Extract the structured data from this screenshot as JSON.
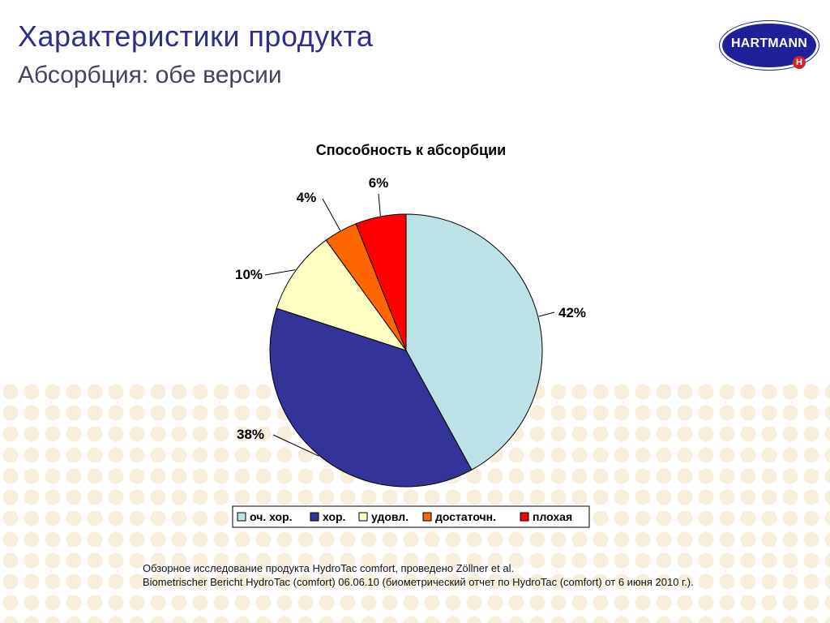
{
  "slide": {
    "title": "Характеристики продукта",
    "subtitle": "Абсорбция: обе версии",
    "logo": {
      "text": "HARTMANN",
      "mark": "H"
    }
  },
  "chart_data": {
    "type": "pie",
    "title": "Способность к абсорбции",
    "categories": [
      "оч. хор.",
      "хор.",
      "удовл.",
      "достаточн.",
      "плохая"
    ],
    "values": [
      42,
      38,
      10,
      4,
      6
    ],
    "labels": [
      "42%",
      "38%",
      "10%",
      "4%",
      "6%"
    ],
    "colors": [
      "#bce1e6",
      "#33339a",
      "#ffffc2",
      "#ff6600",
      "#ff0000"
    ],
    "start": "12 o'clock",
    "direction": "clockwise",
    "legend_position": "bottom"
  },
  "footnote": {
    "line1": "Обзорное исследование продукта HydroTac comfort, проведено Zöllner et al.",
    "line2": "Biometrischer Bericht HydroTac (comfort) 06.06.10 (биометрический отчет по HydroTac (comfort) от 6 июня 2010 г.)."
  }
}
